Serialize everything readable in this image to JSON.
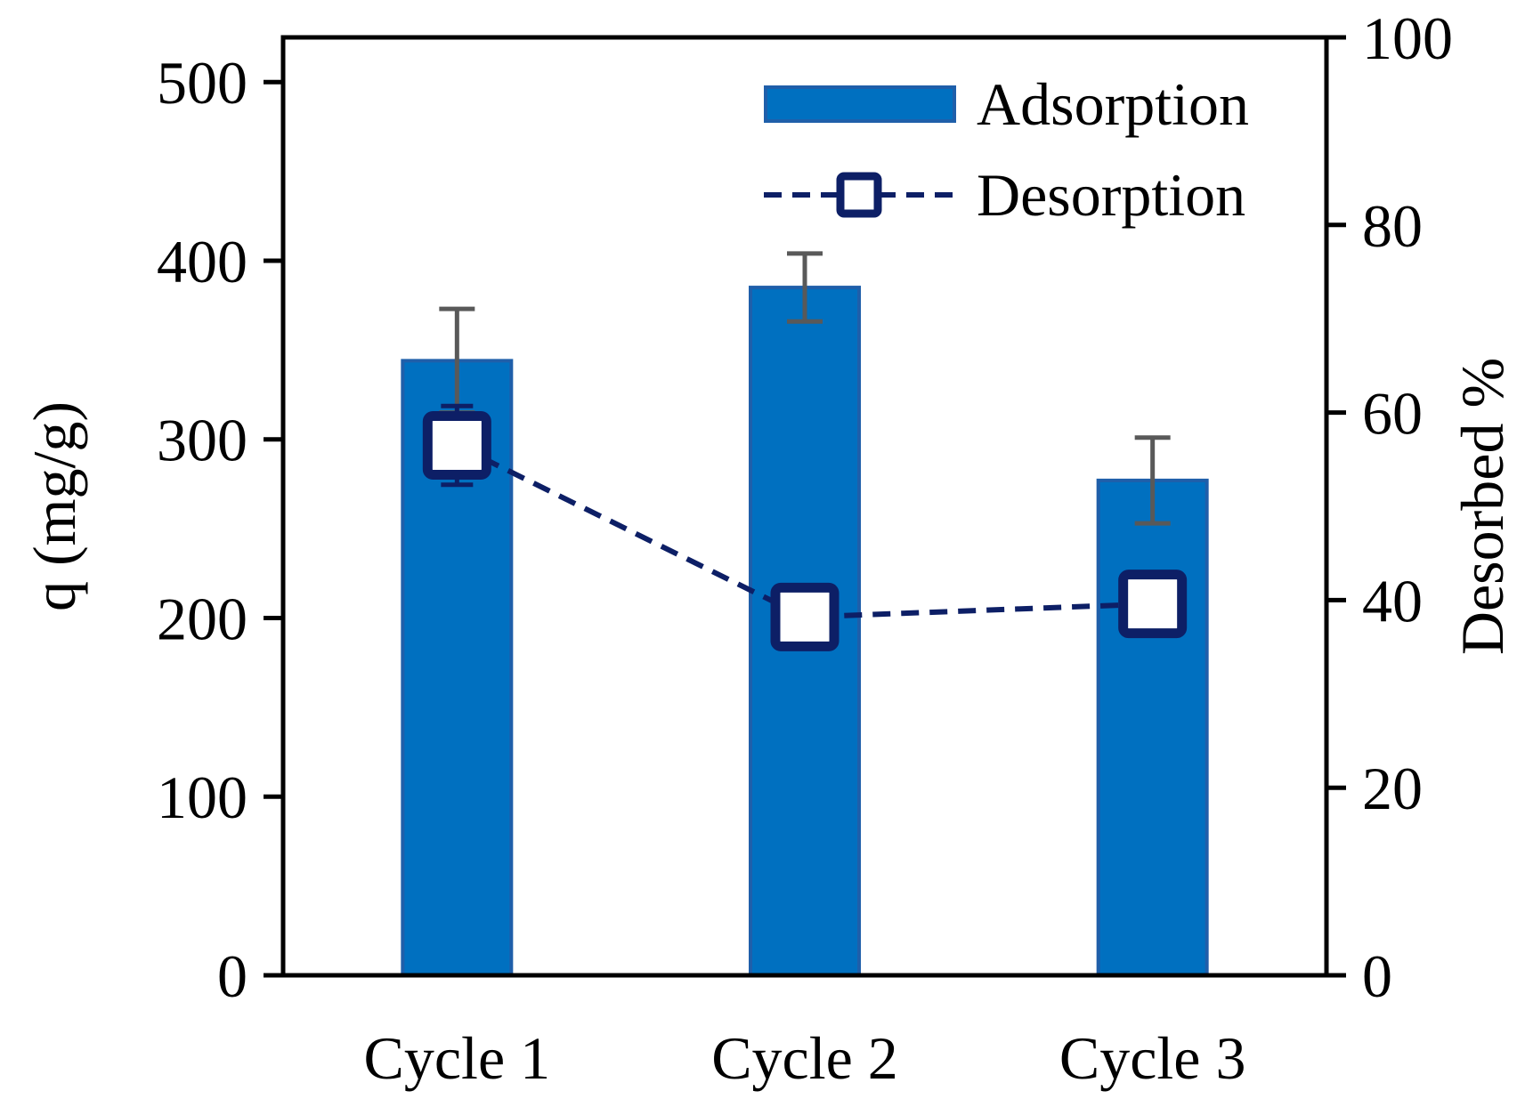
{
  "chart_data": {
    "type": "bar+line",
    "categories": [
      "Cycle 1",
      "Cycle 2",
      "Cycle 3"
    ],
    "series": [
      {
        "name": "Adsorption",
        "kind": "bar",
        "axis": "left",
        "values": [
          344,
          385,
          277
        ],
        "error": [
          29,
          19,
          24
        ],
        "color": "#0070C0",
        "edge_color": "#1F5FAA",
        "error_color": "#595959"
      },
      {
        "name": "Desorption",
        "kind": "line",
        "axis": "right",
        "values": [
          56.5,
          38.2,
          39.6
        ],
        "error": [
          4.2,
          0,
          0
        ],
        "color": "#0D1F66",
        "marker": "open-square",
        "line_style": "dashed"
      }
    ],
    "y_left": {
      "label": "q (mg/g)",
      "lim": [
        0,
        525
      ],
      "ticks": [
        0,
        100,
        200,
        300,
        400,
        500
      ]
    },
    "y_right": {
      "label": "Desorbed %",
      "lim": [
        0,
        100
      ],
      "ticks": [
        0,
        20,
        40,
        60,
        80,
        100
      ]
    },
    "legend": {
      "position": "top-right",
      "entries": [
        "Adsorption",
        "Desorption"
      ]
    },
    "grid": false
  }
}
